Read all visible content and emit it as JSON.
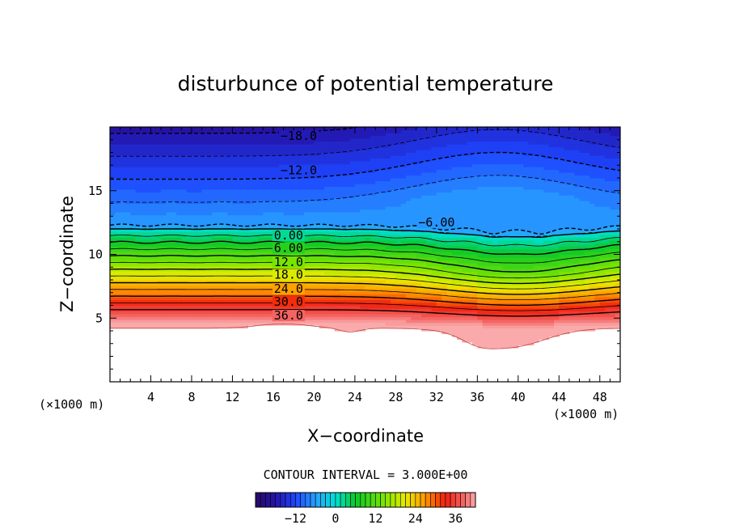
{
  "chart_data": {
    "type": "heatmap",
    "title": "disturbunce of potential temperature",
    "xlabel": "X−coordinate",
    "ylabel": "Z−coordinate",
    "x_unit_left": "(×1000 m)",
    "x_unit_right": "(×1000 m)",
    "xlim": [
      0,
      50
    ],
    "ylim": [
      0,
      20
    ],
    "x_ticks": [
      4,
      8,
      12,
      16,
      20,
      24,
      28,
      32,
      36,
      40,
      44,
      48
    ],
    "x_tick_labels": [
      "4",
      "8",
      "12",
      "16",
      "20",
      "24",
      "28",
      "32",
      "36",
      "40",
      "44",
      "48"
    ],
    "y_ticks": [
      5,
      10,
      15
    ],
    "y_tick_labels": [
      "5",
      "10",
      "15"
    ],
    "contour_interval_text": "CONTOUR INTERVAL = 3.000E+00",
    "contour_labels": [
      {
        "text": "−18.0",
        "x": 18.5,
        "z": 19.3
      },
      {
        "text": "−12.0",
        "x": 18.5,
        "z": 16.6
      },
      {
        "text": "−6.00",
        "x": 32.0,
        "z": 12.5
      },
      {
        "text": "0.00",
        "x": 17.5,
        "z": 11.5
      },
      {
        "text": "6.00",
        "x": 17.5,
        "z": 10.5
      },
      {
        "text": "12.0",
        "x": 17.5,
        "z": 9.4
      },
      {
        "text": "18.0",
        "x": 17.5,
        "z": 8.4
      },
      {
        "text": "24.0",
        "x": 17.5,
        "z": 7.3
      },
      {
        "text": "30.0",
        "x": 17.5,
        "z": 6.3
      },
      {
        "text": "36.0",
        "x": 17.5,
        "z": 5.2
      }
    ],
    "colorbar": {
      "min": -24,
      "max": 42,
      "tick_values": [
        -12,
        0,
        12,
        24,
        36
      ],
      "tick_labels": [
        "−12",
        "0",
        "12",
        "24",
        "36"
      ]
    },
    "colors": {
      "deep_purple": "#2a0a6e",
      "blue": "#1a3cff",
      "sky": "#2aa0ff",
      "cyan": "#00e0d8",
      "green": "#10c020",
      "yellow": "#e8ea00",
      "orange": "#ff8a00",
      "red": "#ef1a10",
      "pink": "#f8a0a0"
    }
  }
}
